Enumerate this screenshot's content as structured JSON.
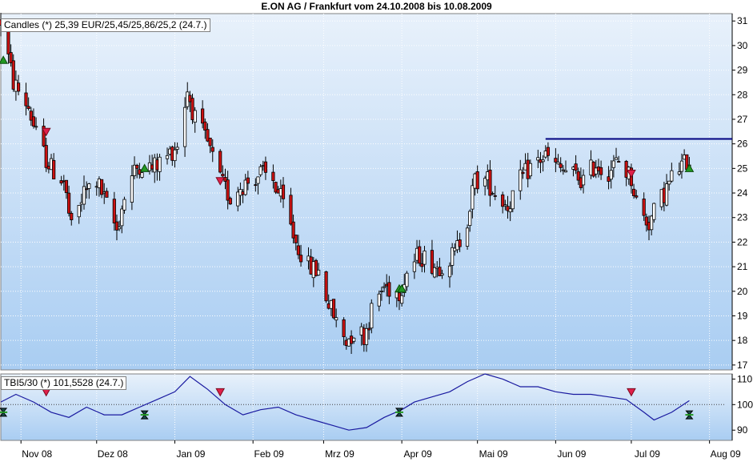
{
  "window": {
    "title": "E.ON AG / Frankfurt vom 24.10.2008 bis 10.08.2009"
  },
  "main_panel": {
    "label": "Candles (*) 25,39 EUR/25,45/25,86/25,2 (24.7.)"
  },
  "indicator_panel": {
    "label": "TBI5/30 (*) 101,5528 (24.7.)"
  },
  "colors": {
    "background_top": "#e8f1fb",
    "background_bottom": "#a9cdf2",
    "up_candle": "#ffffff",
    "down_candle": "#cc1111",
    "resistance": "#000080",
    "indicator_line": "#1a1aa0",
    "buy_marker": "#229922",
    "sell_marker": "#e0204a"
  },
  "chart_data": [
    {
      "type": "candlestick",
      "title": "E.ON AG / Frankfurt vom 24.10.2008 bis 10.08.2009",
      "x_start": "2008-10-24",
      "x_end": "2009-08-10",
      "x_ticks": [
        "Nov 08",
        "Dez 08",
        "Jan 09",
        "Feb 09",
        "Mrz 09",
        "Apr 09",
        "Mai 09",
        "Jun 09",
        "Jul 09",
        "Aug 09"
      ],
      "x_tick_dates": [
        "2008-11-01",
        "2008-12-01",
        "2009-01-01",
        "2009-02-01",
        "2009-03-01",
        "2009-04-01",
        "2009-05-01",
        "2009-06-01",
        "2009-07-01",
        "2009-08-01"
      ],
      "ylim": [
        16.8,
        31.3
      ],
      "y_ticks": [
        17,
        18,
        19,
        20,
        21,
        22,
        23,
        24,
        25,
        26,
        27,
        28,
        29,
        30,
        31
      ],
      "grid": true,
      "resistance_line": {
        "y": 26.2,
        "from": "2009-05-28",
        "to": "2009-08-10"
      },
      "monthly_path": [
        [
          "2008-10-24",
          31.0
        ],
        [
          "2008-10-29",
          28.5
        ],
        [
          "2008-11-04",
          27.5
        ],
        [
          "2008-11-08",
          26.0
        ],
        [
          "2008-11-13",
          25.0
        ],
        [
          "2008-11-18",
          24.5
        ],
        [
          "2008-11-21",
          22.5
        ],
        [
          "2008-11-26",
          24.0
        ],
        [
          "2008-12-01",
          24.5
        ],
        [
          "2008-12-05",
          23.5
        ],
        [
          "2008-12-09",
          22.5
        ],
        [
          "2008-12-13",
          24.3
        ],
        [
          "2008-12-18",
          25.2
        ],
        [
          "2008-12-23",
          25.0
        ],
        [
          "2008-12-29",
          25.5
        ],
        [
          "2009-01-02",
          26.0
        ],
        [
          "2009-01-06",
          28.2
        ],
        [
          "2009-01-09",
          27.0
        ],
        [
          "2009-01-14",
          26.0
        ],
        [
          "2009-01-19",
          24.5
        ],
        [
          "2009-01-23",
          23.8
        ],
        [
          "2009-01-27",
          24.3
        ],
        [
          "2009-01-31",
          24.5
        ],
        [
          "2009-02-04",
          24.8
        ],
        [
          "2009-02-09",
          24.5
        ],
        [
          "2009-02-13",
          23.5
        ],
        [
          "2009-02-18",
          22.0
        ],
        [
          "2009-02-23",
          21.0
        ],
        [
          "2009-02-27",
          20.8
        ],
        [
          "2009-03-03",
          19.5
        ],
        [
          "2009-03-07",
          18.5
        ],
        [
          "2009-03-10",
          18.0
        ],
        [
          "2009-03-14",
          18.5
        ],
        [
          "2009-03-17",
          18.2
        ],
        [
          "2009-03-21",
          19.5
        ],
        [
          "2009-03-25",
          20.2
        ],
        [
          "2009-03-31",
          20.0
        ],
        [
          "2009-04-03",
          20.8
        ],
        [
          "2009-04-08",
          21.5
        ],
        [
          "2009-04-15",
          21.0
        ],
        [
          "2009-04-22",
          21.5
        ],
        [
          "2009-04-27",
          23.0
        ],
        [
          "2009-04-30",
          24.5
        ],
        [
          "2009-05-05",
          24.5
        ],
        [
          "2009-05-08",
          24.0
        ],
        [
          "2009-05-13",
          23.5
        ],
        [
          "2009-05-18",
          24.5
        ],
        [
          "2009-05-23",
          25.2
        ],
        [
          "2009-05-28",
          25.5
        ],
        [
          "2009-06-02",
          25.0
        ],
        [
          "2009-06-07",
          24.8
        ],
        [
          "2009-06-12",
          24.5
        ],
        [
          "2009-06-17",
          25.2
        ],
        [
          "2009-06-21",
          24.8
        ],
        [
          "2009-06-26",
          25.3
        ],
        [
          "2009-07-01",
          24.6
        ],
        [
          "2009-07-04",
          23.2
        ],
        [
          "2009-07-08",
          22.8
        ],
        [
          "2009-07-13",
          23.8
        ],
        [
          "2009-07-18",
          24.8
        ],
        [
          "2009-07-24",
          25.4
        ]
      ],
      "signals": [
        {
          "type": "buy",
          "date": "2008-10-25",
          "y": 29.4
        },
        {
          "type": "sell",
          "date": "2008-11-11",
          "y": 26.5
        },
        {
          "type": "buy",
          "date": "2008-12-20",
          "y": 25.0
        },
        {
          "type": "sell",
          "date": "2009-01-19",
          "y": 24.5
        },
        {
          "type": "buy",
          "date": "2009-03-31",
          "y": 20.1
        },
        {
          "type": "buy",
          "date": "2009-04-01",
          "y": 20.1
        },
        {
          "type": "sell",
          "date": "2009-07-01",
          "y": 24.8
        },
        {
          "type": "buy",
          "date": "2009-07-24",
          "y": 25.0
        }
      ]
    },
    {
      "type": "line",
      "name": "TBI5/30",
      "ylim": [
        86,
        112
      ],
      "y_ticks": [
        90,
        100,
        110
      ],
      "reference_line": 100,
      "points": [
        [
          "2008-10-24",
          101
        ],
        [
          "2008-10-30",
          104
        ],
        [
          "2008-11-06",
          101
        ],
        [
          "2008-11-13",
          97
        ],
        [
          "2008-11-20",
          95
        ],
        [
          "2008-11-27",
          99
        ],
        [
          "2008-12-04",
          96
        ],
        [
          "2008-12-11",
          96
        ],
        [
          "2008-12-18",
          99
        ],
        [
          "2008-12-25",
          102
        ],
        [
          "2009-01-01",
          105
        ],
        [
          "2009-01-07",
          111
        ],
        [
          "2009-01-14",
          106
        ],
        [
          "2009-01-21",
          100
        ],
        [
          "2009-01-28",
          96
        ],
        [
          "2009-02-04",
          98
        ],
        [
          "2009-02-11",
          99
        ],
        [
          "2009-02-18",
          96
        ],
        [
          "2009-02-25",
          94
        ],
        [
          "2009-03-04",
          92
        ],
        [
          "2009-03-11",
          90
        ],
        [
          "2009-03-18",
          91
        ],
        [
          "2009-03-25",
          95
        ],
        [
          "2009-04-01",
          98
        ],
        [
          "2009-04-06",
          101
        ],
        [
          "2009-04-13",
          103
        ],
        [
          "2009-04-20",
          105
        ],
        [
          "2009-04-27",
          109
        ],
        [
          "2009-05-04",
          112
        ],
        [
          "2009-05-11",
          110
        ],
        [
          "2009-05-18",
          107
        ],
        [
          "2009-05-25",
          107
        ],
        [
          "2009-06-01",
          105
        ],
        [
          "2009-06-08",
          104
        ],
        [
          "2009-06-15",
          104
        ],
        [
          "2009-06-22",
          103
        ],
        [
          "2009-06-29",
          102
        ],
        [
          "2009-07-06",
          97
        ],
        [
          "2009-07-10",
          94
        ],
        [
          "2009-07-17",
          97
        ],
        [
          "2009-07-24",
          101.5528
        ]
      ],
      "signals": [
        {
          "type": "buy",
          "date": "2008-10-25",
          "y": 97
        },
        {
          "type": "sell",
          "date": "2008-11-11",
          "y": 105
        },
        {
          "type": "buy",
          "date": "2008-12-20",
          "y": 96
        },
        {
          "type": "sell",
          "date": "2009-01-19",
          "y": 105
        },
        {
          "type": "buy",
          "date": "2009-03-31",
          "y": 97
        },
        {
          "type": "sell",
          "date": "2009-07-01",
          "y": 105
        },
        {
          "type": "buy",
          "date": "2009-07-24",
          "y": 96
        }
      ]
    }
  ]
}
